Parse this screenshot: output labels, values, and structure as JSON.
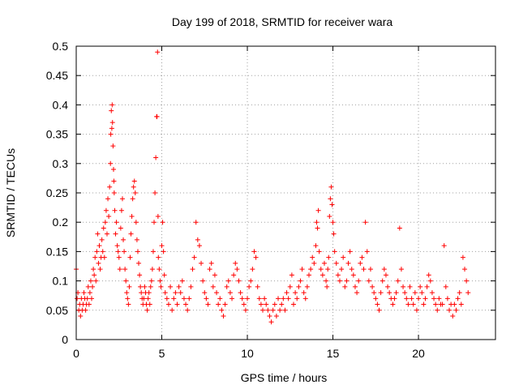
{
  "chart_data": {
    "type": "scatter",
    "title": "Day 199 of 2018, SRMTID for receiver wara",
    "xlabel": "GPS time / hours",
    "ylabel": "SRMTID / TECUs",
    "xlim": [
      0,
      24.5
    ],
    "ylim": [
      0,
      0.5
    ],
    "x_ticks": [
      0,
      5,
      10,
      15,
      20
    ],
    "x_tick_labels": [
      "0",
      "5",
      "10",
      "15",
      "20"
    ],
    "y_ticks": [
      0,
      0.05,
      0.1,
      0.15,
      0.2,
      0.25,
      0.3,
      0.35,
      0.4,
      0.45,
      0.5
    ],
    "y_tick_labels": [
      "0",
      "0.05",
      "0.1",
      "0.15",
      "0.2",
      "0.25",
      "0.3",
      "0.35",
      "0.4",
      "0.45",
      "0.5"
    ],
    "grid": true,
    "marker": "plus",
    "color": "#ff0000",
    "series": [
      {
        "name": "SRMTID",
        "x": [
          0.0,
          0.05,
          0.1,
          0.15,
          0.2,
          0.25,
          0.3,
          0.35,
          0.4,
          0.45,
          0.5,
          0.55,
          0.6,
          0.65,
          0.7,
          0.75,
          0.8,
          0.85,
          0.9,
          0.95,
          1.0,
          1.05,
          1.1,
          1.15,
          1.2,
          1.25,
          1.3,
          1.35,
          1.4,
          1.45,
          1.5,
          1.55,
          1.6,
          1.65,
          1.7,
          1.75,
          1.8,
          1.85,
          1.9,
          1.95,
          2.0,
          2.02,
          2.05,
          2.08,
          2.1,
          2.12,
          2.15,
          2.18,
          2.2,
          2.22,
          2.25,
          2.3,
          2.35,
          2.4,
          2.45,
          2.5,
          2.55,
          2.6,
          2.65,
          2.7,
          2.75,
          2.8,
          2.85,
          2.9,
          2.95,
          3.0,
          3.05,
          3.1,
          3.15,
          3.2,
          3.25,
          3.3,
          3.35,
          3.4,
          3.45,
          3.5,
          3.55,
          3.6,
          3.65,
          3.7,
          3.75,
          3.8,
          3.85,
          3.9,
          3.95,
          4.0,
          4.05,
          4.1,
          4.15,
          4.2,
          4.25,
          4.3,
          4.35,
          4.4,
          4.45,
          4.5,
          4.55,
          4.6,
          4.65,
          4.7,
          4.72,
          4.75,
          4.78,
          4.8,
          4.85,
          4.9,
          4.95,
          5.0,
          5.05,
          5.1,
          5.15,
          5.2,
          5.3,
          5.4,
          5.5,
          5.6,
          5.7,
          5.8,
          5.9,
          6.0,
          6.1,
          6.2,
          6.3,
          6.4,
          6.5,
          6.6,
          6.7,
          6.8,
          6.9,
          7.0,
          7.1,
          7.2,
          7.3,
          7.4,
          7.5,
          7.6,
          7.7,
          7.8,
          7.9,
          8.0,
          8.1,
          8.2,
          8.3,
          8.4,
          8.5,
          8.6,
          8.7,
          8.8,
          8.9,
          9.0,
          9.1,
          9.2,
          9.3,
          9.4,
          9.5,
          9.6,
          9.7,
          9.8,
          9.9,
          10.0,
          10.1,
          10.2,
          10.3,
          10.4,
          10.5,
          10.6,
          10.7,
          10.8,
          10.9,
          11.0,
          11.1,
          11.2,
          11.3,
          11.4,
          11.5,
          11.6,
          11.7,
          11.8,
          11.9,
          12.0,
          12.1,
          12.2,
          12.3,
          12.4,
          12.5,
          12.6,
          12.7,
          12.8,
          12.9,
          13.0,
          13.1,
          13.2,
          13.3,
          13.4,
          13.5,
          13.6,
          13.7,
          13.8,
          13.9,
          14.0,
          14.05,
          14.1,
          14.15,
          14.2,
          14.3,
          14.4,
          14.5,
          14.6,
          14.65,
          14.7,
          14.75,
          14.8,
          14.85,
          14.9,
          14.95,
          15.0,
          15.05,
          15.1,
          15.2,
          15.3,
          15.4,
          15.5,
          15.6,
          15.7,
          15.8,
          15.9,
          16.0,
          16.1,
          16.2,
          16.3,
          16.4,
          16.5,
          16.6,
          16.7,
          16.8,
          16.9,
          17.0,
          17.1,
          17.2,
          17.3,
          17.4,
          17.5,
          17.6,
          17.7,
          17.8,
          17.9,
          18.0,
          18.1,
          18.2,
          18.3,
          18.4,
          18.5,
          18.6,
          18.7,
          18.8,
          18.9,
          19.0,
          19.1,
          19.2,
          19.3,
          19.4,
          19.5,
          19.6,
          19.7,
          19.8,
          19.9,
          20.0,
          20.1,
          20.2,
          20.3,
          20.4,
          20.5,
          20.6,
          20.7,
          20.8,
          20.9,
          21.0,
          21.1,
          21.2,
          21.3,
          21.4,
          21.5,
          21.6,
          21.7,
          21.8,
          21.9,
          22.0,
          22.1,
          22.2,
          22.3,
          22.4,
          22.5,
          22.6,
          22.7,
          22.8,
          22.9
        ],
        "y": [
          0.12,
          0.07,
          0.08,
          0.05,
          0.06,
          0.04,
          0.07,
          0.05,
          0.06,
          0.08,
          0.07,
          0.05,
          0.06,
          0.07,
          0.09,
          0.06,
          0.08,
          0.1,
          0.07,
          0.09,
          0.12,
          0.11,
          0.14,
          0.1,
          0.15,
          0.18,
          0.13,
          0.16,
          0.12,
          0.14,
          0.17,
          0.15,
          0.19,
          0.14,
          0.2,
          0.22,
          0.18,
          0.24,
          0.21,
          0.26,
          0.3,
          0.35,
          0.39,
          0.36,
          0.4,
          0.37,
          0.33,
          0.29,
          0.27,
          0.25,
          0.22,
          0.18,
          0.2,
          0.16,
          0.15,
          0.14,
          0.12,
          0.19,
          0.22,
          0.24,
          0.17,
          0.15,
          0.12,
          0.1,
          0.08,
          0.07,
          0.06,
          0.09,
          0.14,
          0.18,
          0.21,
          0.24,
          0.26,
          0.27,
          0.25,
          0.2,
          0.17,
          0.15,
          0.13,
          0.11,
          0.09,
          0.08,
          0.07,
          0.06,
          0.07,
          0.09,
          0.08,
          0.06,
          0.05,
          0.07,
          0.08,
          0.06,
          0.09,
          0.1,
          0.12,
          0.15,
          0.2,
          0.25,
          0.31,
          0.38,
          0.38,
          0.49,
          0.21,
          0.14,
          0.12,
          0.1,
          0.09,
          0.16,
          0.2,
          0.15,
          0.11,
          0.08,
          0.07,
          0.06,
          0.09,
          0.05,
          0.07,
          0.08,
          0.06,
          0.09,
          0.08,
          0.1,
          0.07,
          0.06,
          0.05,
          0.07,
          0.09,
          0.12,
          0.14,
          0.2,
          0.17,
          0.16,
          0.13,
          0.1,
          0.08,
          0.07,
          0.06,
          0.12,
          0.13,
          0.09,
          0.11,
          0.08,
          0.06,
          0.07,
          0.05,
          0.04,
          0.06,
          0.09,
          0.1,
          0.08,
          0.07,
          0.11,
          0.13,
          0.12,
          0.1,
          0.08,
          0.07,
          0.06,
          0.05,
          0.07,
          0.09,
          0.1,
          0.12,
          0.15,
          0.14,
          0.09,
          0.07,
          0.06,
          0.05,
          0.07,
          0.06,
          0.05,
          0.04,
          0.03,
          0.05,
          0.06,
          0.04,
          0.07,
          0.05,
          0.06,
          0.07,
          0.05,
          0.08,
          0.07,
          0.09,
          0.11,
          0.06,
          0.08,
          0.07,
          0.09,
          0.1,
          0.12,
          0.08,
          0.07,
          0.09,
          0.11,
          0.12,
          0.14,
          0.13,
          0.16,
          0.2,
          0.19,
          0.22,
          0.15,
          0.12,
          0.11,
          0.13,
          0.1,
          0.09,
          0.12,
          0.14,
          0.21,
          0.24,
          0.26,
          0.23,
          0.2,
          0.18,
          0.15,
          0.13,
          0.11,
          0.1,
          0.12,
          0.14,
          0.09,
          0.1,
          0.13,
          0.15,
          0.12,
          0.11,
          0.09,
          0.08,
          0.1,
          0.13,
          0.14,
          0.12,
          0.2,
          0.15,
          0.1,
          0.12,
          0.09,
          0.08,
          0.07,
          0.06,
          0.05,
          0.08,
          0.1,
          0.12,
          0.11,
          0.09,
          0.08,
          0.07,
          0.06,
          0.07,
          0.08,
          0.1,
          0.19,
          0.12,
          0.09,
          0.08,
          0.07,
          0.06,
          0.09,
          0.07,
          0.06,
          0.08,
          0.05,
          0.07,
          0.09,
          0.08,
          0.06,
          0.07,
          0.09,
          0.11,
          0.1,
          0.08,
          0.07,
          0.06,
          0.05,
          0.07,
          0.06,
          0.06,
          0.16,
          0.09,
          0.07,
          0.05,
          0.06,
          0.04,
          0.06,
          0.05,
          0.07,
          0.08,
          0.06,
          0.14,
          0.12,
          0.1,
          0.08
        ]
      }
    ]
  }
}
